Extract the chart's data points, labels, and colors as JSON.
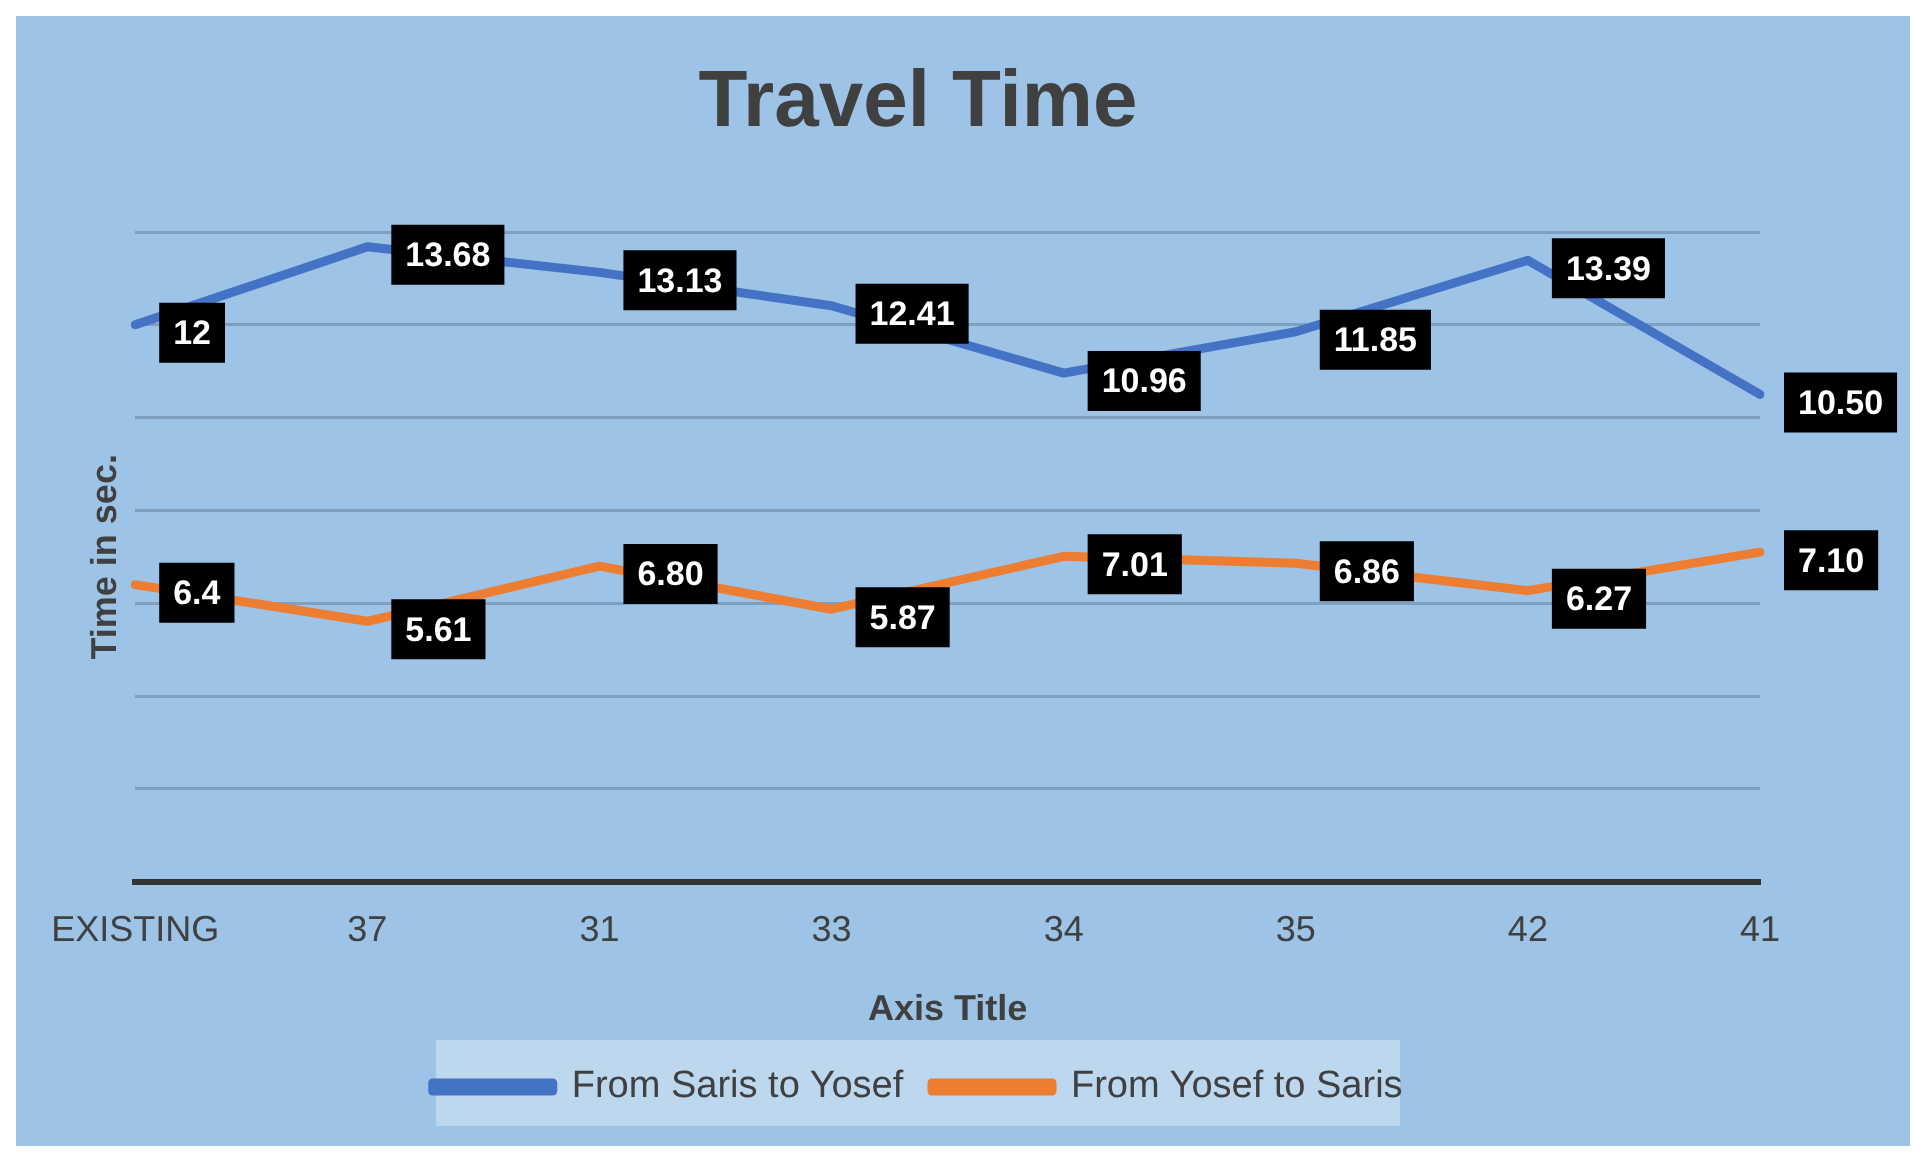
{
  "chart_data": {
    "type": "line",
    "title": "Travel Time",
    "xlabel": "Axis Title",
    "ylabel": "Time in sec.",
    "categories": [
      "EXISTING",
      "37",
      "31",
      "33",
      "34",
      "35",
      "42",
      "41"
    ],
    "series": [
      {
        "name": "From Saris to Yosef",
        "color": "#4472c4",
        "values": [
          12,
          13.68,
          13.13,
          12.41,
          10.96,
          11.85,
          13.39,
          10.5
        ],
        "value_labels": [
          "12",
          "13.68",
          "13.13",
          "12.41",
          "10.96",
          "11.85",
          "13.39",
          "10.50"
        ]
      },
      {
        "name": "From Yosef to Saris",
        "color": "#ed7d31",
        "values": [
          6.4,
          5.61,
          6.8,
          5.87,
          7.01,
          6.86,
          6.27,
          7.1
        ],
        "value_labels": [
          "6.4",
          "5.61",
          "6.80",
          "5.87",
          "7.01",
          "6.86",
          "6.27",
          "7.10"
        ]
      }
    ],
    "ylim": [
      0,
      14
    ],
    "yticks": [
      {
        "value": 0,
        "label": null
      },
      {
        "value": 2,
        "label": null
      },
      {
        "value": 4,
        "label": null
      },
      {
        "value": 6,
        "label": null
      },
      {
        "value": 8,
        "label": null
      },
      {
        "value": 10,
        "label": null
      },
      {
        "value": 12,
        "label": null
      },
      {
        "value": 14,
        "label": null
      }
    ],
    "tick_labels": "x",
    "grid": "y",
    "legend": "bottom",
    "marker": "none",
    "line_style": "solid",
    "data_labels": true
  }
}
